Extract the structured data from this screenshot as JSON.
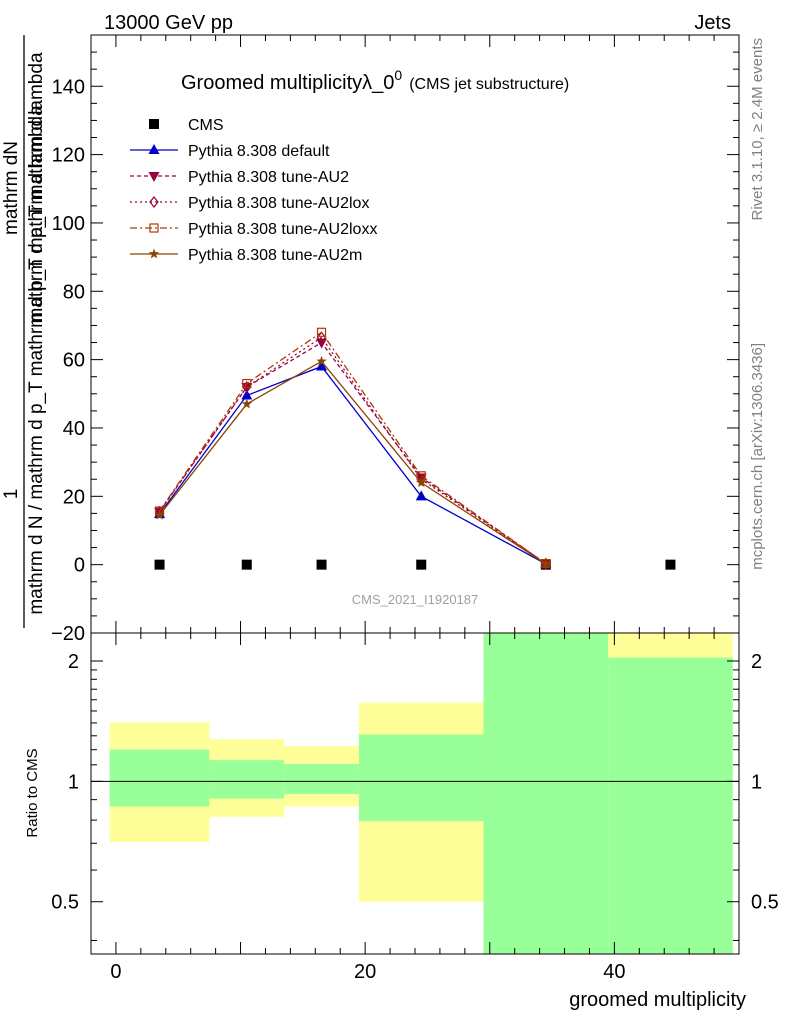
{
  "header": {
    "left": "13000 GeV pp",
    "right": "Jets"
  },
  "side_labels": {
    "rivet": "Rivet 3.1.10, ≥ 2.4M events",
    "mcplots": "mcplots.cern.ch [arXiv:1306.3436]"
  },
  "watermark": "CMS_2021_I1920187",
  "chart_data": [
    {
      "type": "line",
      "title": "Groomed multiplicityλ_0",
      "title_sup": "0",
      "title_suffix": "(CMS jet substructure)",
      "ylabel_numerator": "mathrm dN",
      "ylabel_top_small": "1",
      "ylabel_denominator_top": "mathrm d p_T mathrm d lambda",
      "ylabel_denominator_bottom": "mathrm d N / mathrm d p_T mathrm d p_T mathrm d lambda",
      "xlim": [
        -2,
        50
      ],
      "ylim": [
        -20,
        155
      ],
      "y_ticks": [
        -20,
        0,
        20,
        40,
        60,
        80,
        100,
        120,
        140
      ],
      "y_tick_labels": [
        "−20",
        "0",
        "20",
        "40",
        "60",
        "80",
        "100",
        "120",
        "140"
      ],
      "legend_position": "top-left",
      "series": [
        {
          "name": "CMS",
          "style": "data",
          "color": "#000000",
          "marker": "square",
          "x": [
            3.5,
            10.5,
            16.5,
            24.5,
            34.5,
            44.5
          ],
          "y": [
            0,
            0,
            0,
            0,
            0,
            0
          ]
        },
        {
          "name": "Pythia 8.308 default",
          "color": "#0000cc",
          "dash": "",
          "marker": "triangle-up",
          "x": [
            3.5,
            10.5,
            16.5,
            24.5,
            34.5
          ],
          "y": [
            14.8,
            49.5,
            58.0,
            20.0,
            0.2
          ]
        },
        {
          "name": "Pythia 8.308 tune-AU2",
          "color": "#9b0040",
          "dash": "4,3",
          "marker": "triangle-down",
          "x": [
            3.5,
            10.5,
            16.5,
            24.5,
            34.5
          ],
          "y": [
            15.5,
            52.0,
            65.0,
            25.5,
            0.3
          ]
        },
        {
          "name": "Pythia 8.308 tune-AU2lox",
          "color": "#9b0040",
          "dash": "2,3",
          "marker": "diamond-open",
          "x": [
            3.5,
            10.5,
            16.5,
            24.5,
            34.5
          ],
          "y": [
            15.5,
            52.0,
            66.5,
            25.0,
            0.3
          ]
        },
        {
          "name": "Pythia 8.308 tune-AU2loxx",
          "color": "#b03a00",
          "dash": "7,3,2,3",
          "marker": "square-open",
          "x": [
            3.5,
            10.5,
            16.5,
            24.5,
            34.5
          ],
          "y": [
            15.7,
            53.0,
            68.0,
            26.0,
            0.3
          ]
        },
        {
          "name": "Pythia 8.308 tune-AU2m",
          "color": "#8b4500",
          "dash": "",
          "marker": "star",
          "x": [
            3.5,
            10.5,
            16.5,
            24.5,
            34.5
          ],
          "y": [
            14.5,
            47.0,
            59.5,
            24.0,
            0.2
          ]
        }
      ]
    },
    {
      "type": "area",
      "ylabel": "Ratio to CMS",
      "xlabel": "groomed multiplicity",
      "xlim": [
        -2,
        50
      ],
      "ylim": [
        0.37,
        2.35
      ],
      "log_y": true,
      "y_ticks": [
        0.5,
        1,
        2
      ],
      "y_tick_labels": [
        "0.5",
        "1",
        "2"
      ],
      "x_ticks": [
        0,
        20,
        40
      ],
      "x_tick_labels": [
        "0",
        "20",
        "40"
      ],
      "reference_line": 1,
      "colors": {
        "inner": "#99ff99",
        "outer": "#ffff99"
      },
      "bands": [
        {
          "x0": -0.5,
          "x1": 7.5,
          "inner_lo": 0.865,
          "inner_hi": 1.2,
          "outer_lo": 0.705,
          "outer_hi": 1.405
        },
        {
          "x0": 7.5,
          "x1": 13.5,
          "inner_lo": 0.905,
          "inner_hi": 1.13,
          "outer_lo": 0.815,
          "outer_hi": 1.275
        },
        {
          "x0": 13.5,
          "x1": 19.5,
          "inner_lo": 0.93,
          "inner_hi": 1.105,
          "outer_lo": 0.865,
          "outer_hi": 1.225
        },
        {
          "x0": 19.5,
          "x1": 29.5,
          "inner_lo": 0.795,
          "inner_hi": 1.31,
          "outer_lo": 0.5,
          "outer_hi": 1.575
        },
        {
          "x0": 29.5,
          "x1": 39.5,
          "inner_lo": 0.37,
          "inner_hi": 2.35,
          "outer_lo": 0.37,
          "outer_hi": 2.35
        },
        {
          "x0": 39.5,
          "x1": 49.5,
          "inner_lo": 0.37,
          "inner_hi": 2.04,
          "outer_lo": 0.37,
          "outer_hi": 2.35
        }
      ]
    }
  ]
}
